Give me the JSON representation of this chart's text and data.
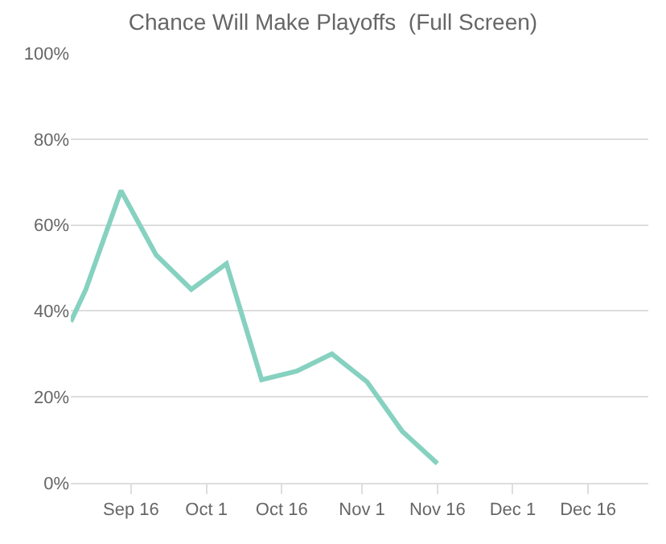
{
  "chart_data": {
    "type": "line",
    "title": "Chance Will Make Playoffs  (Full Screen)",
    "x": [
      "--09-04",
      "--09-07",
      "--09-14",
      "--09-21",
      "--09-28",
      "--10-05",
      "--10-12",
      "--10-19",
      "--10-26",
      "--11-02",
      "--11-09",
      "--11-16"
    ],
    "series": [
      {
        "color": "#86d1c0",
        "values": [
          37.5,
          45,
          68,
          53,
          45,
          51,
          24,
          26,
          30,
          23.5,
          12,
          4.5
        ]
      }
    ],
    "xlim": [
      "--09-04",
      "--12-28"
    ],
    "xticks": [
      {
        "value": "--09-16",
        "label": "Sep 16"
      },
      {
        "value": "--10-01",
        "label": "Oct 1"
      },
      {
        "value": "--10-16",
        "label": "Oct 16"
      },
      {
        "value": "--11-01",
        "label": "Nov 1"
      },
      {
        "value": "--11-16",
        "label": "Nov 16"
      },
      {
        "value": "--12-01",
        "label": "Dec 1"
      },
      {
        "value": "--12-16",
        "label": "Dec 16"
      }
    ],
    "ylim": [
      0,
      100
    ],
    "yticks": [
      {
        "value": 0,
        "label": "0%"
      },
      {
        "value": 20,
        "label": "20%"
      },
      {
        "value": 40,
        "label": "40%"
      },
      {
        "value": 60,
        "label": "60%"
      },
      {
        "value": 80,
        "label": "80%"
      },
      {
        "value": 100,
        "label": "100%"
      }
    ],
    "grid": "y",
    "line_style": "solid",
    "marker": "none"
  }
}
